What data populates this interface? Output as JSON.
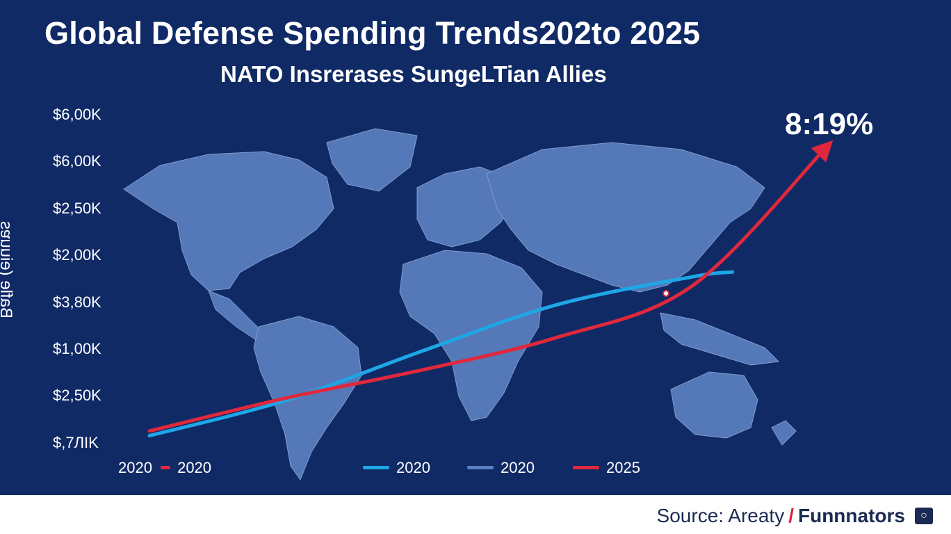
{
  "chart_data": {
    "type": "line",
    "title": "Global Defense Spending Trends202to 2025",
    "subtitle": "NATO Insrerases SungeLTian Allies",
    "ylabel": "Bafle (eiuuɐs",
    "ytick_labels": [
      "$6,00K",
      "$6,00K",
      "$2,50K",
      "$2,00K",
      "$3,80K",
      "$1,00K",
      "$2,50K",
      "$,7ЛIK"
    ],
    "x": [
      0,
      1,
      2,
      3,
      4,
      5
    ],
    "series": [
      {
        "name": "2020",
        "color": "#1ea7e6",
        "values": [
          0.2,
          0.95,
          2.0,
          3.0,
          3.6,
          3.95
        ]
      },
      {
        "name": "2025",
        "color": "#e0283c",
        "values": [
          0.3,
          1.0,
          1.6,
          2.3,
          3.4,
          6.4
        ]
      }
    ],
    "ylim": [
      0,
      7
    ],
    "annotation": "8:19%",
    "legend": [
      {
        "label": "2020",
        "prefix": "2020",
        "color": "#e0283c"
      },
      {
        "label": "2020",
        "color": "#1ea7e6"
      },
      {
        "label": "2020",
        "color": "#5b7fc0"
      },
      {
        "label": "2025",
        "color": "#e0283c"
      }
    ]
  },
  "footer": {
    "source_label": "Source:",
    "source_name": "Areaty",
    "source_separator": "/",
    "source_brand": "Funnnators"
  },
  "colors": {
    "background": "#102a66",
    "land": "#5a7fbf",
    "line_2020": "#1ea7e6",
    "line_2025": "#e0283c"
  }
}
